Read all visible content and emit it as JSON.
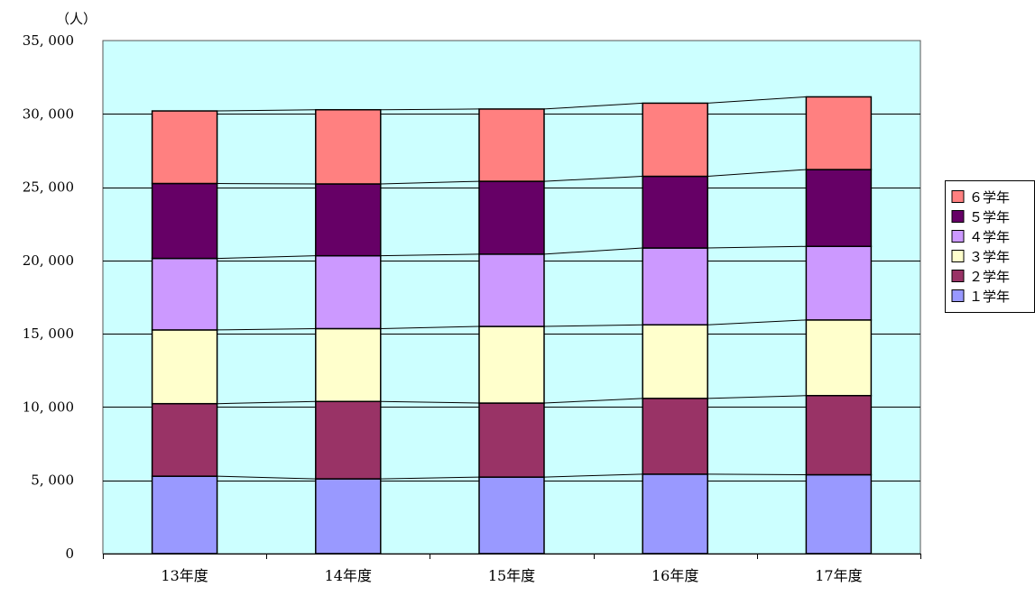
{
  "chart_data": {
    "type": "bar",
    "stacked": true,
    "unit_label": "（人）",
    "categories": [
      "13年度",
      "14年度",
      "15年度",
      "16年度",
      "17年度"
    ],
    "ylim": [
      0,
      35000
    ],
    "yticks": [
      0,
      5000,
      10000,
      15000,
      20000,
      25000,
      30000,
      35000
    ],
    "ytick_labels": [
      "0",
      "5, 000",
      "10, 000",
      "15, 000",
      "20, 000",
      "25, 000",
      "30, 000",
      "35, 000"
    ],
    "grid": true,
    "series_connectors": true,
    "legend_position": "right",
    "series": [
      {
        "name": "１学年",
        "color": "#9999ff",
        "values": [
          5280,
          5100,
          5220,
          5420,
          5380
        ]
      },
      {
        "name": "２学年",
        "color": "#993366",
        "values": [
          4950,
          5280,
          5050,
          5170,
          5400
        ]
      },
      {
        "name": "３学年",
        "color": "#ffffcc",
        "values": [
          5030,
          4970,
          5230,
          5020,
          5160
        ]
      },
      {
        "name": "４学年",
        "color": "#cc99ff",
        "values": [
          4880,
          4970,
          4930,
          5240,
          5020
        ]
      },
      {
        "name": "５学年",
        "color": "#660066",
        "values": [
          5110,
          4900,
          4970,
          4890,
          5240
        ]
      },
      {
        "name": "６学年",
        "color": "#ff8080",
        "values": [
          4950,
          5060,
          4930,
          4990,
          4960
        ]
      }
    ],
    "colors": {
      "plot_background": "#ccffff",
      "bar_outline": "#000000",
      "grid": "#000000"
    }
  }
}
